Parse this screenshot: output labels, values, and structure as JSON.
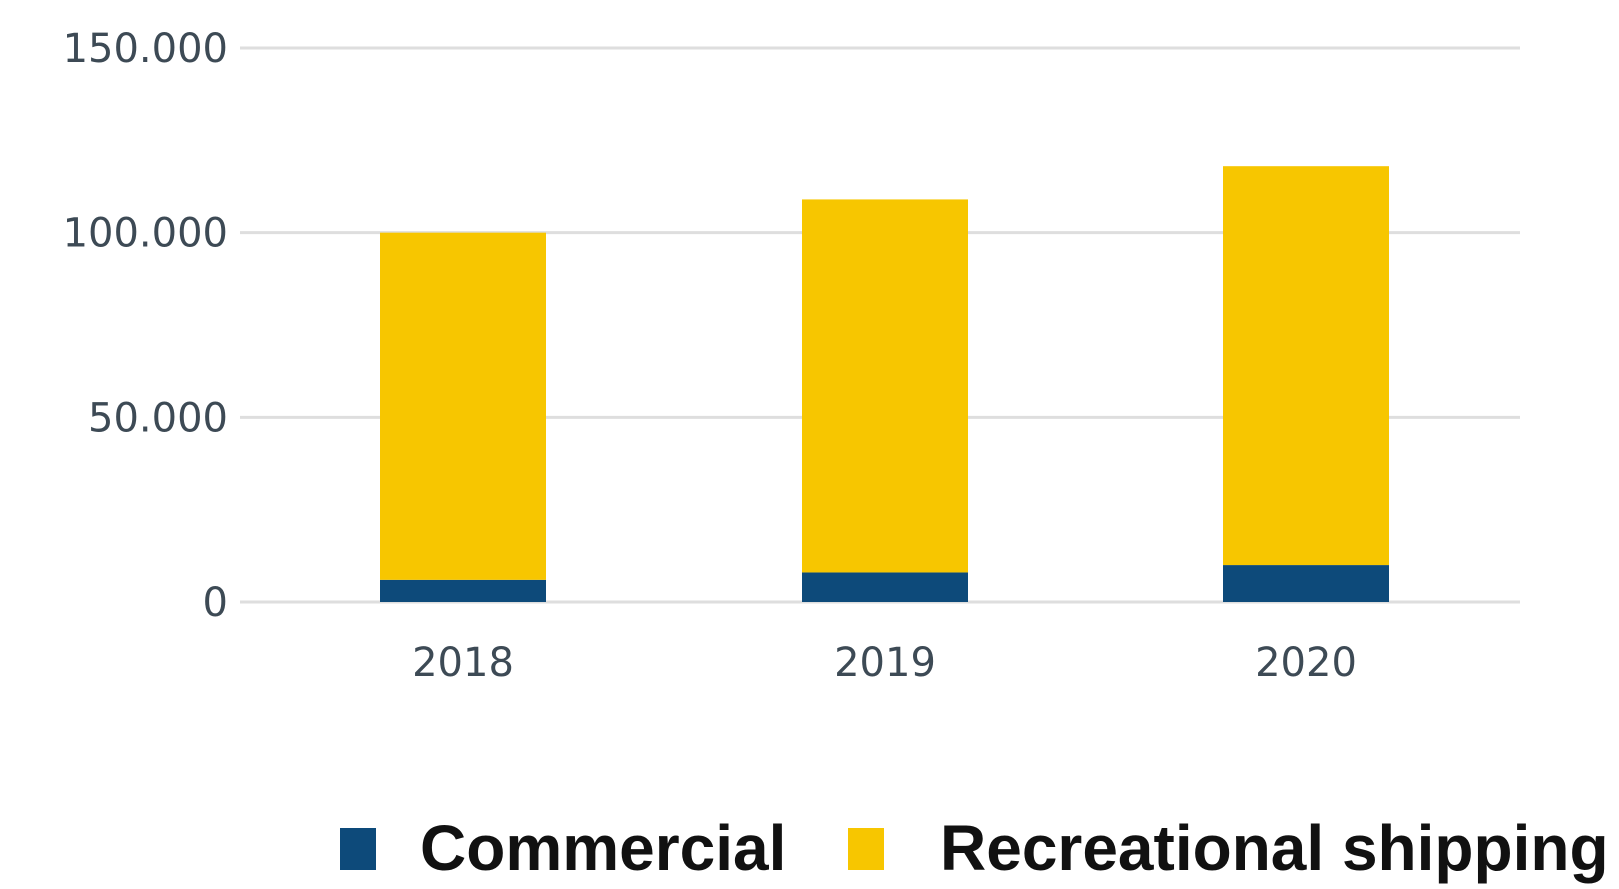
{
  "chart_data": {
    "type": "bar",
    "stacked": true,
    "categories": [
      "2018",
      "2019",
      "2020"
    ],
    "series": [
      {
        "name": "Commercial",
        "color": "#0d4a7a",
        "values": [
          6000,
          8000,
          10000
        ]
      },
      {
        "name": "Recreational shipping",
        "color": "#f7c600",
        "values": [
          94000,
          101000,
          108000
        ]
      }
    ],
    "y_ticks": [
      0,
      50000,
      100000,
      150000
    ],
    "y_tick_labels": [
      "0",
      "50.000",
      "100.000",
      "150.000"
    ],
    "ylim": [
      0,
      150000
    ],
    "grid": true,
    "legend_position": "bottom-right",
    "title": "",
    "xlabel": "",
    "ylabel": ""
  }
}
